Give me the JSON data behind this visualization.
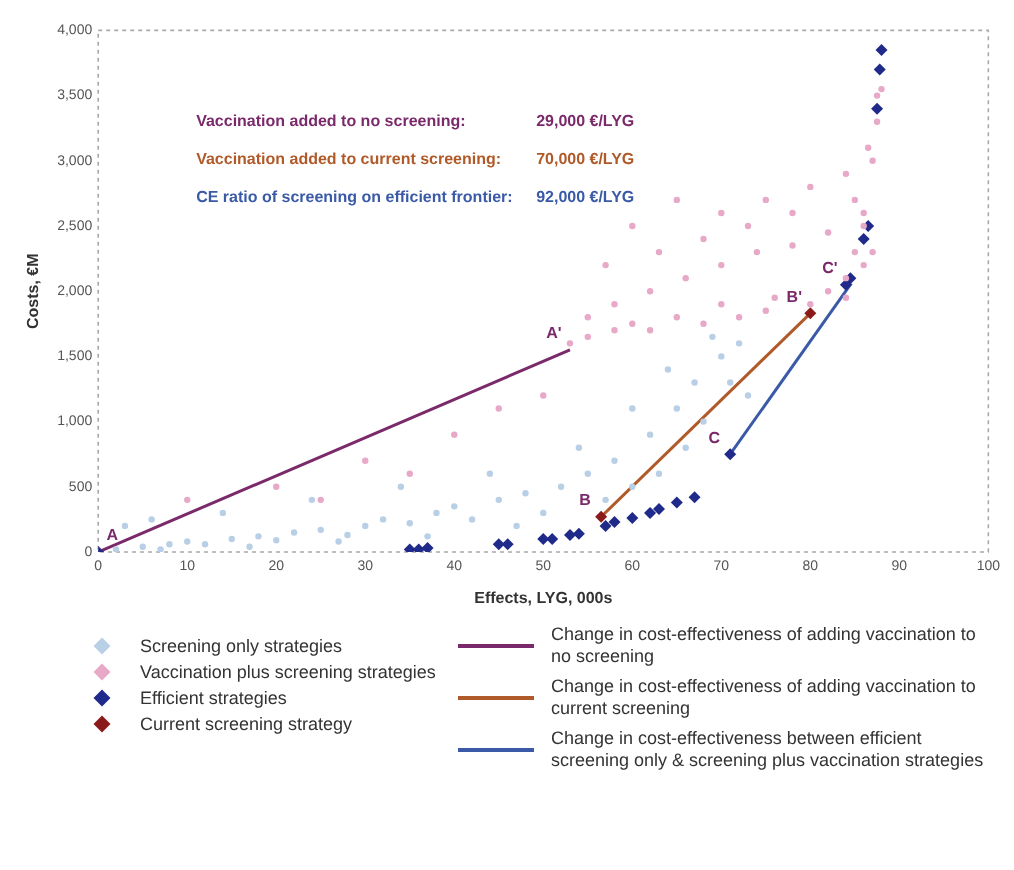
{
  "chart_data": {
    "type": "scatter",
    "xlabel": "Effects, LYG, 000s",
    "ylabel": "Costs, €M",
    "xlim": [
      0,
      100
    ],
    "xticks": [
      0,
      10,
      20,
      30,
      40,
      50,
      60,
      70,
      80,
      90,
      100
    ],
    "ylim": [
      0,
      4000
    ],
    "yticks": [
      0,
      {
        "value": 500,
        "label": "500"
      },
      {
        "value": 1000,
        "label": "1,000"
      },
      {
        "value": 1500,
        "label": "1,500"
      },
      {
        "value": 2000,
        "label": "2,000"
      },
      {
        "value": 2500,
        "label": "2,500"
      },
      {
        "value": 3000,
        "label": "3,000"
      },
      {
        "value": 3500,
        "label": "3,500"
      },
      {
        "value": 4000,
        "label": "4,000"
      }
    ],
    "legend": "bottom",
    "series": [
      {
        "name": "Screening only strategies",
        "marker": "circle",
        "color": "#b8cfe6",
        "x": [
          2,
          5,
          8,
          10,
          12,
          15,
          18,
          20,
          22,
          25,
          28,
          30,
          32,
          35,
          38,
          40,
          42,
          45,
          48,
          50,
          52,
          55,
          58,
          60,
          62,
          65,
          67,
          68,
          70,
          72,
          66,
          63,
          57,
          47,
          37,
          27,
          17,
          7,
          3,
          6,
          14,
          24,
          34,
          44,
          54,
          60,
          64,
          69,
          71,
          73
        ],
        "values": [
          20,
          40,
          60,
          80,
          60,
          100,
          120,
          90,
          150,
          170,
          130,
          200,
          250,
          220,
          300,
          350,
          250,
          400,
          450,
          300,
          500,
          600,
          700,
          500,
          900,
          1100,
          1300,
          1000,
          1500,
          1600,
          800,
          600,
          400,
          200,
          120,
          80,
          40,
          20,
          200,
          250,
          300,
          400,
          500,
          600,
          800,
          1100,
          1400,
          1650,
          1300,
          1200
        ]
      },
      {
        "name": "Vaccination plus screening strategies",
        "marker": "circle",
        "color": "#e8a8c8",
        "x": [
          53,
          55,
          58,
          60,
          62,
          65,
          68,
          70,
          72,
          75,
          76,
          80,
          82,
          84,
          85,
          86,
          87,
          87.5,
          88,
          55,
          58,
          62,
          66,
          70,
          74,
          78,
          82,
          85,
          86.5,
          87.5,
          57,
          60,
          65,
          70,
          75,
          80,
          84,
          63,
          68,
          73,
          78,
          86,
          87,
          86,
          84,
          40,
          30,
          20,
          10,
          45,
          50,
          35,
          25
        ],
        "values": [
          1600,
          1650,
          1700,
          1750,
          1700,
          1800,
          1750,
          1900,
          1800,
          1850,
          1950,
          1900,
          2000,
          2100,
          2300,
          2600,
          3000,
          3300,
          3550,
          1800,
          1900,
          2000,
          2100,
          2200,
          2300,
          2350,
          2450,
          2700,
          3100,
          3500,
          2200,
          2500,
          2700,
          2600,
          2700,
          2800,
          2900,
          2300,
          2400,
          2500,
          2600,
          2500,
          2300,
          2200,
          1950,
          900,
          700,
          500,
          400,
          1100,
          1200,
          600,
          400
        ]
      },
      {
        "name": "Efficient strategies",
        "marker": "diamond",
        "color": "#1f2a8a",
        "x": [
          0,
          35,
          36,
          37,
          45,
          46,
          50,
          51,
          53,
          54,
          57,
          58,
          60,
          62,
          63,
          65,
          67,
          71,
          84,
          84.5,
          86,
          86.5,
          87.5,
          87.8,
          88
        ],
        "values": [
          0,
          20,
          20,
          30,
          60,
          60,
          100,
          100,
          130,
          140,
          200,
          230,
          260,
          300,
          330,
          380,
          420,
          750,
          2050,
          2100,
          2400,
          2500,
          3400,
          3700,
          3850
        ]
      },
      {
        "name": "Current screening strategy",
        "marker": "diamond",
        "color": "#8b1a1a",
        "x": [
          56.5,
          80
        ],
        "values": [
          270,
          1830
        ]
      },
      {
        "name": "Change in cost-effectiveness of adding vaccination to no screening",
        "type": "line",
        "color": "#7a2a6a",
        "x": [
          0,
          53
        ],
        "values": [
          0,
          1550
        ]
      },
      {
        "name": "Change in cost-effectiveness of adding vaccination to current screening",
        "type": "line",
        "color": "#b05a2a",
        "x": [
          56.5,
          80
        ],
        "values": [
          270,
          1830
        ]
      },
      {
        "name": "Change in cost-effectiveness between efficient screening only & screening plus vaccination strategies",
        "type": "line",
        "color": "#3a5aa8",
        "x": [
          71,
          84.6
        ],
        "values": [
          750,
          2060
        ]
      }
    ],
    "annotations": [
      "Vaccination added to no screening:",
      "29,000 €/LYG",
      "Vaccination added to current screening:",
      "70,000 €/LYG",
      "CE ratio of screening on efficient frontier:",
      "92,000 €/LYG",
      {
        "text": "A",
        "x": 0,
        "y": 0
      },
      {
        "text": "A'",
        "x": 53,
        "y": 1550
      },
      {
        "text": "B",
        "x": 56.5,
        "y": 270
      },
      {
        "text": "B'",
        "x": 80,
        "y": 1830
      },
      {
        "text": "C",
        "x": 71,
        "y": 750
      },
      {
        "text": "C'",
        "x": 84,
        "y": 2050
      }
    ]
  }
}
